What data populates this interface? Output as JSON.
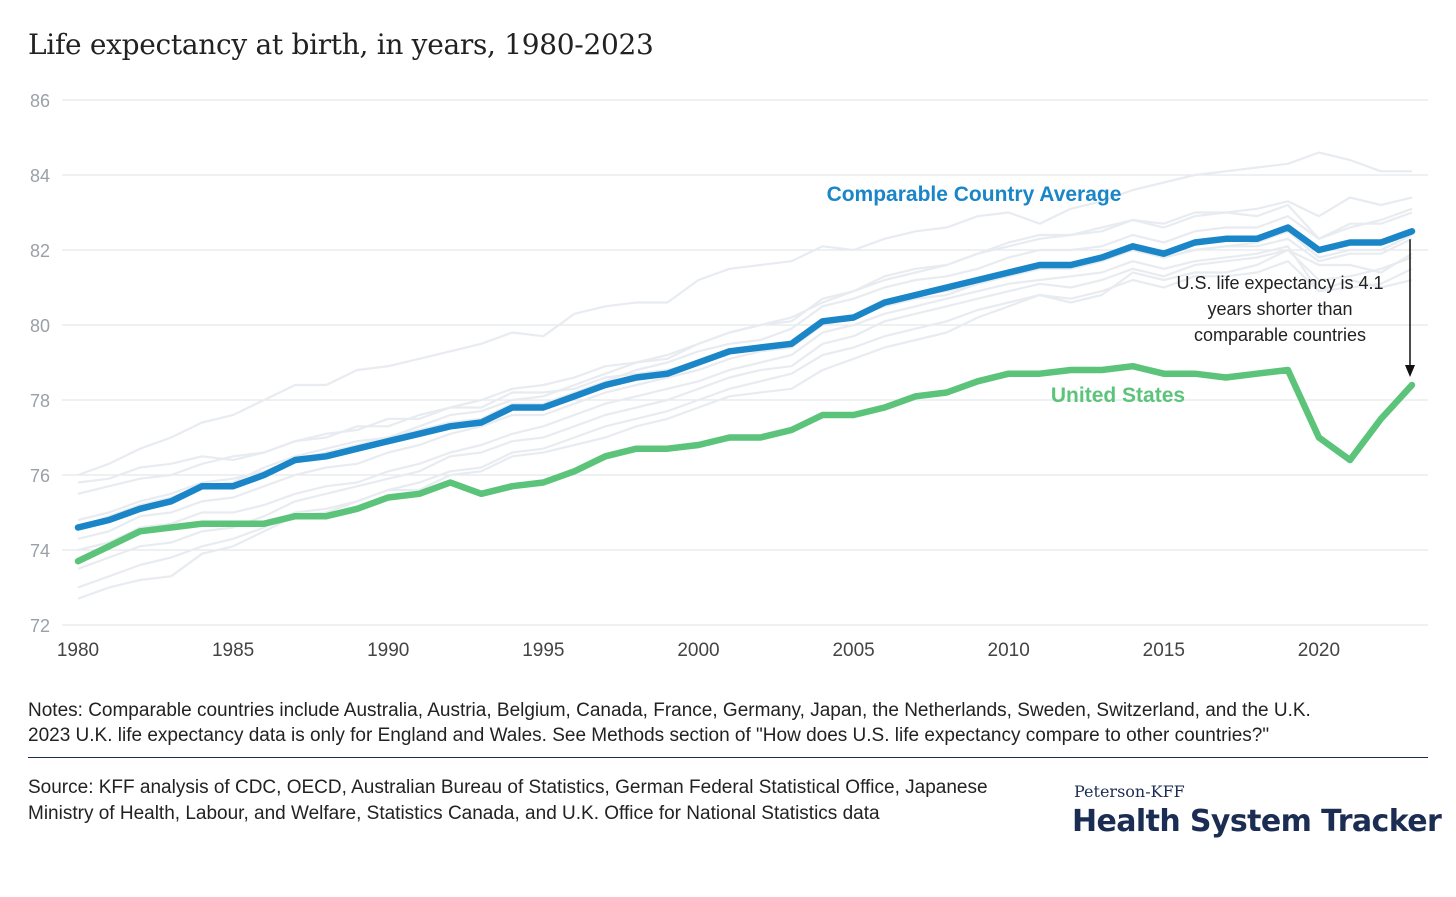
{
  "chart_data": {
    "type": "line",
    "title": "Life expectancy at birth, in years, 1980-2023",
    "x": [
      1980,
      1981,
      1982,
      1983,
      1984,
      1985,
      1986,
      1987,
      1988,
      1989,
      1990,
      1991,
      1992,
      1993,
      1994,
      1995,
      1996,
      1997,
      1998,
      1999,
      2000,
      2001,
      2002,
      2003,
      2004,
      2005,
      2006,
      2007,
      2008,
      2009,
      2010,
      2011,
      2012,
      2013,
      2014,
      2015,
      2016,
      2017,
      2018,
      2019,
      2020,
      2021,
      2022,
      2023
    ],
    "x_ticks": [
      1980,
      1985,
      1990,
      1995,
      2000,
      2005,
      2010,
      2015,
      2020
    ],
    "y_ticks": [
      72,
      74,
      76,
      78,
      80,
      82,
      84,
      86
    ],
    "ylim": [
      72,
      86
    ],
    "grid": true,
    "series": [
      {
        "name": "Comparable Country Average",
        "color": "#1a86c8",
        "values": [
          74.6,
          74.8,
          75.1,
          75.3,
          75.7,
          75.7,
          76.0,
          76.4,
          76.5,
          76.7,
          76.9,
          77.1,
          77.3,
          77.4,
          77.8,
          77.8,
          78.1,
          78.4,
          78.6,
          78.7,
          79.0,
          79.3,
          79.4,
          79.5,
          80.1,
          80.2,
          80.6,
          80.8,
          81.0,
          81.2,
          81.4,
          81.6,
          81.6,
          81.8,
          82.1,
          81.9,
          82.2,
          82.3,
          82.3,
          82.6,
          82.0,
          82.2,
          82.2,
          82.5
        ]
      },
      {
        "name": "United States",
        "color": "#5bc47a",
        "values": [
          73.7,
          74.1,
          74.5,
          74.6,
          74.7,
          74.7,
          74.7,
          74.9,
          74.9,
          75.1,
          75.4,
          75.5,
          75.8,
          75.5,
          75.7,
          75.8,
          76.1,
          76.5,
          76.7,
          76.7,
          76.8,
          77.0,
          77.0,
          77.2,
          77.6,
          77.6,
          77.8,
          78.1,
          78.2,
          78.5,
          78.7,
          78.7,
          78.8,
          78.8,
          78.9,
          78.7,
          78.7,
          78.6,
          78.7,
          78.8,
          77.0,
          76.4,
          77.5,
          78.4
        ]
      }
    ],
    "background_series_color": "#e8ecf1",
    "background_series": [
      [
        76.0,
        76.3,
        76.7,
        77.0,
        77.4,
        77.6,
        78.0,
        78.4,
        78.4,
        78.8,
        78.9,
        79.1,
        79.3,
        79.5,
        79.8,
        79.7,
        80.3,
        80.5,
        80.6,
        80.6,
        81.2,
        81.5,
        81.6,
        81.7,
        82.1,
        82.0,
        82.3,
        82.5,
        82.6,
        82.9,
        83.0,
        82.7,
        83.1,
        83.3,
        83.6,
        83.8,
        84.0,
        84.1,
        84.2,
        84.3,
        84.6,
        84.4,
        84.1,
        84.1
      ],
      [
        75.5,
        75.7,
        75.9,
        76.0,
        76.3,
        76.5,
        76.6,
        76.9,
        77.1,
        77.2,
        77.5,
        77.5,
        77.8,
        78.0,
        78.3,
        78.4,
        78.6,
        78.9,
        79.0,
        79.2,
        79.5,
        79.8,
        80.0,
        80.2,
        80.6,
        80.9,
        81.2,
        81.4,
        81.6,
        81.9,
        82.1,
        82.3,
        82.4,
        82.6,
        82.8,
        82.7,
        83.0,
        83.0,
        83.1,
        83.3,
        82.9,
        83.4,
        83.2,
        83.4
      ],
      [
        74.8,
        75.0,
        75.3,
        75.5,
        75.8,
        75.9,
        76.1,
        76.4,
        76.6,
        76.8,
        77.0,
        77.2,
        77.4,
        77.5,
        77.9,
        77.9,
        78.2,
        78.5,
        78.8,
        79.0,
        79.3,
        79.5,
        79.6,
        79.9,
        80.5,
        80.7,
        81.0,
        81.2,
        81.3,
        81.5,
        81.8,
        82.0,
        82.0,
        82.1,
        82.4,
        82.2,
        82.5,
        82.6,
        82.6,
        82.9,
        82.3,
        82.6,
        82.8,
        83.1
      ],
      [
        74.3,
        74.5,
        74.9,
        75.0,
        75.3,
        75.4,
        75.7,
        76.0,
        76.2,
        76.3,
        76.6,
        76.8,
        77.1,
        77.3,
        77.6,
        77.6,
        77.9,
        78.2,
        78.4,
        78.6,
        78.8,
        79.1,
        79.3,
        79.4,
        80.0,
        80.2,
        80.5,
        80.7,
        80.8,
        81.1,
        81.3,
        81.5,
        81.5,
        81.7,
        82.0,
        81.8,
        82.0,
        82.1,
        82.2,
        82.5,
        81.8,
        82.0,
        82.0,
        82.4
      ],
      [
        73.5,
        73.8,
        74.1,
        74.2,
        74.5,
        74.6,
        74.9,
        75.3,
        75.5,
        75.7,
        75.9,
        76.1,
        76.5,
        76.6,
        76.9,
        77.0,
        77.3,
        77.6,
        77.8,
        78.0,
        78.3,
        78.6,
        78.8,
        78.9,
        79.5,
        79.7,
        80.1,
        80.3,
        80.5,
        80.7,
        80.9,
        81.1,
        81.0,
        81.2,
        81.5,
        81.3,
        81.6,
        81.7,
        81.8,
        82.0,
        81.2,
        81.3,
        81.5,
        81.8
      ],
      [
        73.0,
        73.3,
        73.6,
        73.8,
        74.1,
        74.3,
        74.6,
        75.0,
        75.1,
        75.3,
        75.6,
        75.8,
        76.1,
        76.2,
        76.6,
        76.7,
        77.0,
        77.3,
        77.5,
        77.7,
        78.0,
        78.3,
        78.5,
        78.7,
        79.2,
        79.4,
        79.7,
        79.9,
        80.1,
        80.4,
        80.6,
        80.8,
        80.7,
        80.9,
        81.2,
        81.0,
        81.3,
        81.3,
        81.4,
        81.7,
        80.9,
        81.0,
        81.1,
        81.5
      ],
      [
        72.7,
        73.0,
        73.2,
        73.3,
        73.9,
        74.1,
        74.5,
        74.9,
        75.0,
        75.3,
        75.6,
        75.6,
        76.0,
        76.1,
        76.5,
        76.6,
        76.8,
        77.0,
        77.3,
        77.5,
        77.8,
        78.1,
        78.2,
        78.3,
        78.8,
        79.1,
        79.4,
        79.6,
        79.8,
        80.2,
        80.5,
        80.8,
        80.6,
        80.8,
        81.4,
        81.2,
        81.4,
        81.4,
        81.6,
        82.0,
        81.6,
        81.6,
        81.4,
        81.9
      ],
      [
        75.8,
        75.9,
        76.2,
        76.3,
        76.5,
        76.4,
        76.6,
        76.9,
        77.0,
        77.3,
        77.3,
        77.6,
        77.8,
        77.8,
        78.2,
        78.2,
        78.3,
        78.6,
        78.7,
        78.8,
        79.0,
        79.3,
        79.4,
        79.5,
        80.1,
        80.2,
        80.6,
        80.8,
        80.9,
        81.1,
        81.4,
        81.5,
        81.6,
        81.8,
        82.0,
        81.8,
        82.0,
        82.1,
        82.1,
        82.3,
        81.7,
        81.9,
        81.9,
        82.3
      ],
      [
        74.0,
        74.2,
        74.6,
        74.7,
        75.0,
        75.0,
        75.2,
        75.5,
        75.7,
        75.8,
        76.1,
        76.3,
        76.6,
        76.8,
        77.1,
        77.3,
        77.6,
        77.9,
        78.1,
        78.3,
        78.5,
        78.8,
        79.0,
        79.2,
        79.8,
        80.0,
        80.3,
        80.5,
        80.7,
        80.9,
        81.1,
        81.2,
        81.3,
        81.4,
        81.7,
        81.5,
        81.7,
        81.8,
        81.9,
        82.1,
        80.9,
        81.2,
        81.0,
        81.2
      ],
      [
        74.6,
        74.9,
        75.2,
        75.4,
        75.7,
        75.8,
        76.2,
        76.5,
        76.7,
        76.9,
        77.0,
        77.3,
        77.6,
        77.7,
        78.0,
        78.1,
        78.4,
        78.7,
        79.0,
        79.1,
        79.5,
        79.8,
        80.0,
        80.1,
        80.7,
        80.9,
        81.3,
        81.5,
        81.6,
        81.9,
        82.2,
        82.4,
        82.4,
        82.5,
        82.8,
        82.6,
        82.9,
        83.0,
        82.9,
        83.2,
        82.3,
        82.7,
        82.7,
        83.0
      ]
    ],
    "annotations": [
      {
        "key": "comparable_label",
        "text": "Comparable Country Average"
      },
      {
        "key": "us_label",
        "text": "United States"
      },
      {
        "key": "gap_note",
        "lines": [
          "U.S. life expectancy is 4.1",
          "years shorter than",
          "comparable countries"
        ]
      }
    ]
  },
  "notes": {
    "line1": "Notes: Comparable countries include Australia, Austria, Belgium, Canada, France, Germany, Japan, the Netherlands, Sweden, Switzerland, and the U.K.",
    "line2": "2023 U.K. life expectancy data is only for England and Wales. See Methods section of \"How does U.S. life expectancy compare to other countries?\""
  },
  "source": "Source: KFF analysis of CDC, OECD, Australian Bureau of Statistics, German Federal Statistical Office, Japanese Ministry of Health, Labour, and Welfare, Statistics Canada, and U.K. Office for National Statistics data",
  "brand": {
    "small": "Peterson-KFF",
    "big": "Health System Tracker"
  }
}
